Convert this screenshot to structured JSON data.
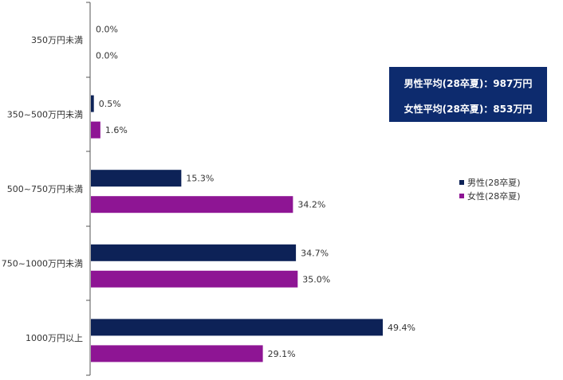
{
  "chart_data": {
    "type": "bar",
    "orientation": "horizontal",
    "categories": [
      "350万円未満",
      "350~500万円未満",
      "500~750万円未満",
      "750~1000万円未満",
      "1000万円以上"
    ],
    "series": [
      {
        "name": "男性(28卒夏)",
        "color": "#0d2257",
        "values": [
          0.0,
          0.5,
          15.3,
          34.7,
          49.4
        ]
      },
      {
        "name": "女性(28卒夏)",
        "color": "#8e1594",
        "values": [
          0.0,
          1.6,
          34.2,
          35.0,
          29.1
        ]
      }
    ],
    "value_suffix": "%",
    "xlim": [
      0,
      50
    ],
    "grid": false,
    "legend_position": "right"
  },
  "info_box": {
    "male_avg": "男性平均(28卒夏)：987万円",
    "female_avg": "女性平均(28卒夏)：853万円"
  }
}
